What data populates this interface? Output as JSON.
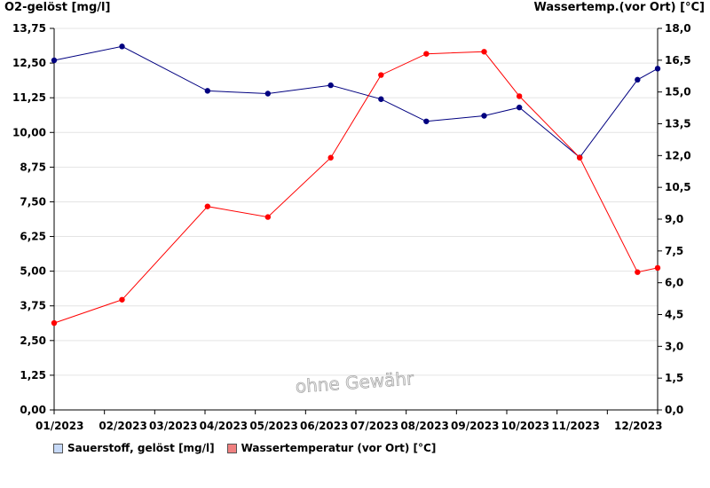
{
  "chart_data": {
    "type": "line",
    "left_axis_title": "O2-gelöst [mg/l]",
    "right_axis_title": "Wassertemp.(vor Ort) [°C]",
    "x_tick_labels": [
      "01/2023",
      "02/2023",
      "03/2023",
      "04/2023",
      "05/2023",
      "06/2023",
      "07/2023",
      "08/2023",
      "09/2023",
      "10/2023",
      "11/2023",
      "12/2023"
    ],
    "y_left": {
      "min": 0,
      "max": 13.75,
      "ticks": [
        "0,00",
        "1,25",
        "2,50",
        "3,75",
        "5,00",
        "6,25",
        "7,50",
        "8,75",
        "10,00",
        "11,25",
        "12,50",
        "13,75"
      ]
    },
    "y_right": {
      "min": 0,
      "max": 18.0,
      "ticks": [
        "0,0",
        "1,5",
        "3,0",
        "4,5",
        "6,0",
        "7,5",
        "9,0",
        "10,5",
        "12,0",
        "13,5",
        "15,0",
        "16,5",
        "18,0"
      ]
    },
    "grid": true,
    "watermark": "ohne Gewähr",
    "series": [
      {
        "name": "Sauerstoff, gelöst [mg/l]",
        "axis": "left",
        "color": "#000080",
        "legend_color": "#c6d9f7",
        "points": [
          {
            "t": 0.0,
            "y": 12.6
          },
          {
            "t": 1.35,
            "y": 13.1
          },
          {
            "t": 3.05,
            "y": 11.5
          },
          {
            "t": 4.25,
            "y": 11.4
          },
          {
            "t": 5.5,
            "y": 11.7
          },
          {
            "t": 6.5,
            "y": 11.2
          },
          {
            "t": 7.4,
            "y": 10.4
          },
          {
            "t": 8.55,
            "y": 10.6
          },
          {
            "t": 9.25,
            "y": 10.9
          },
          {
            "t": 10.45,
            "y": 9.1
          },
          {
            "t": 11.6,
            "y": 11.9
          },
          {
            "t": 12.0,
            "y": 12.3
          }
        ]
      },
      {
        "name": "Wassertemperatur (vor Ort) [°C]",
        "axis": "right",
        "color": "#ff0000",
        "legend_color": "#f08080",
        "points": [
          {
            "t": 0.0,
            "y": 4.1
          },
          {
            "t": 1.35,
            "y": 5.2
          },
          {
            "t": 3.05,
            "y": 9.6
          },
          {
            "t": 4.25,
            "y": 9.1
          },
          {
            "t": 5.5,
            "y": 11.9
          },
          {
            "t": 6.5,
            "y": 15.8
          },
          {
            "t": 7.4,
            "y": 16.8
          },
          {
            "t": 8.55,
            "y": 16.9
          },
          {
            "t": 9.25,
            "y": 14.8
          },
          {
            "t": 10.45,
            "y": 11.9
          },
          {
            "t": 11.6,
            "y": 6.5
          },
          {
            "t": 12.0,
            "y": 6.7
          }
        ]
      }
    ]
  }
}
